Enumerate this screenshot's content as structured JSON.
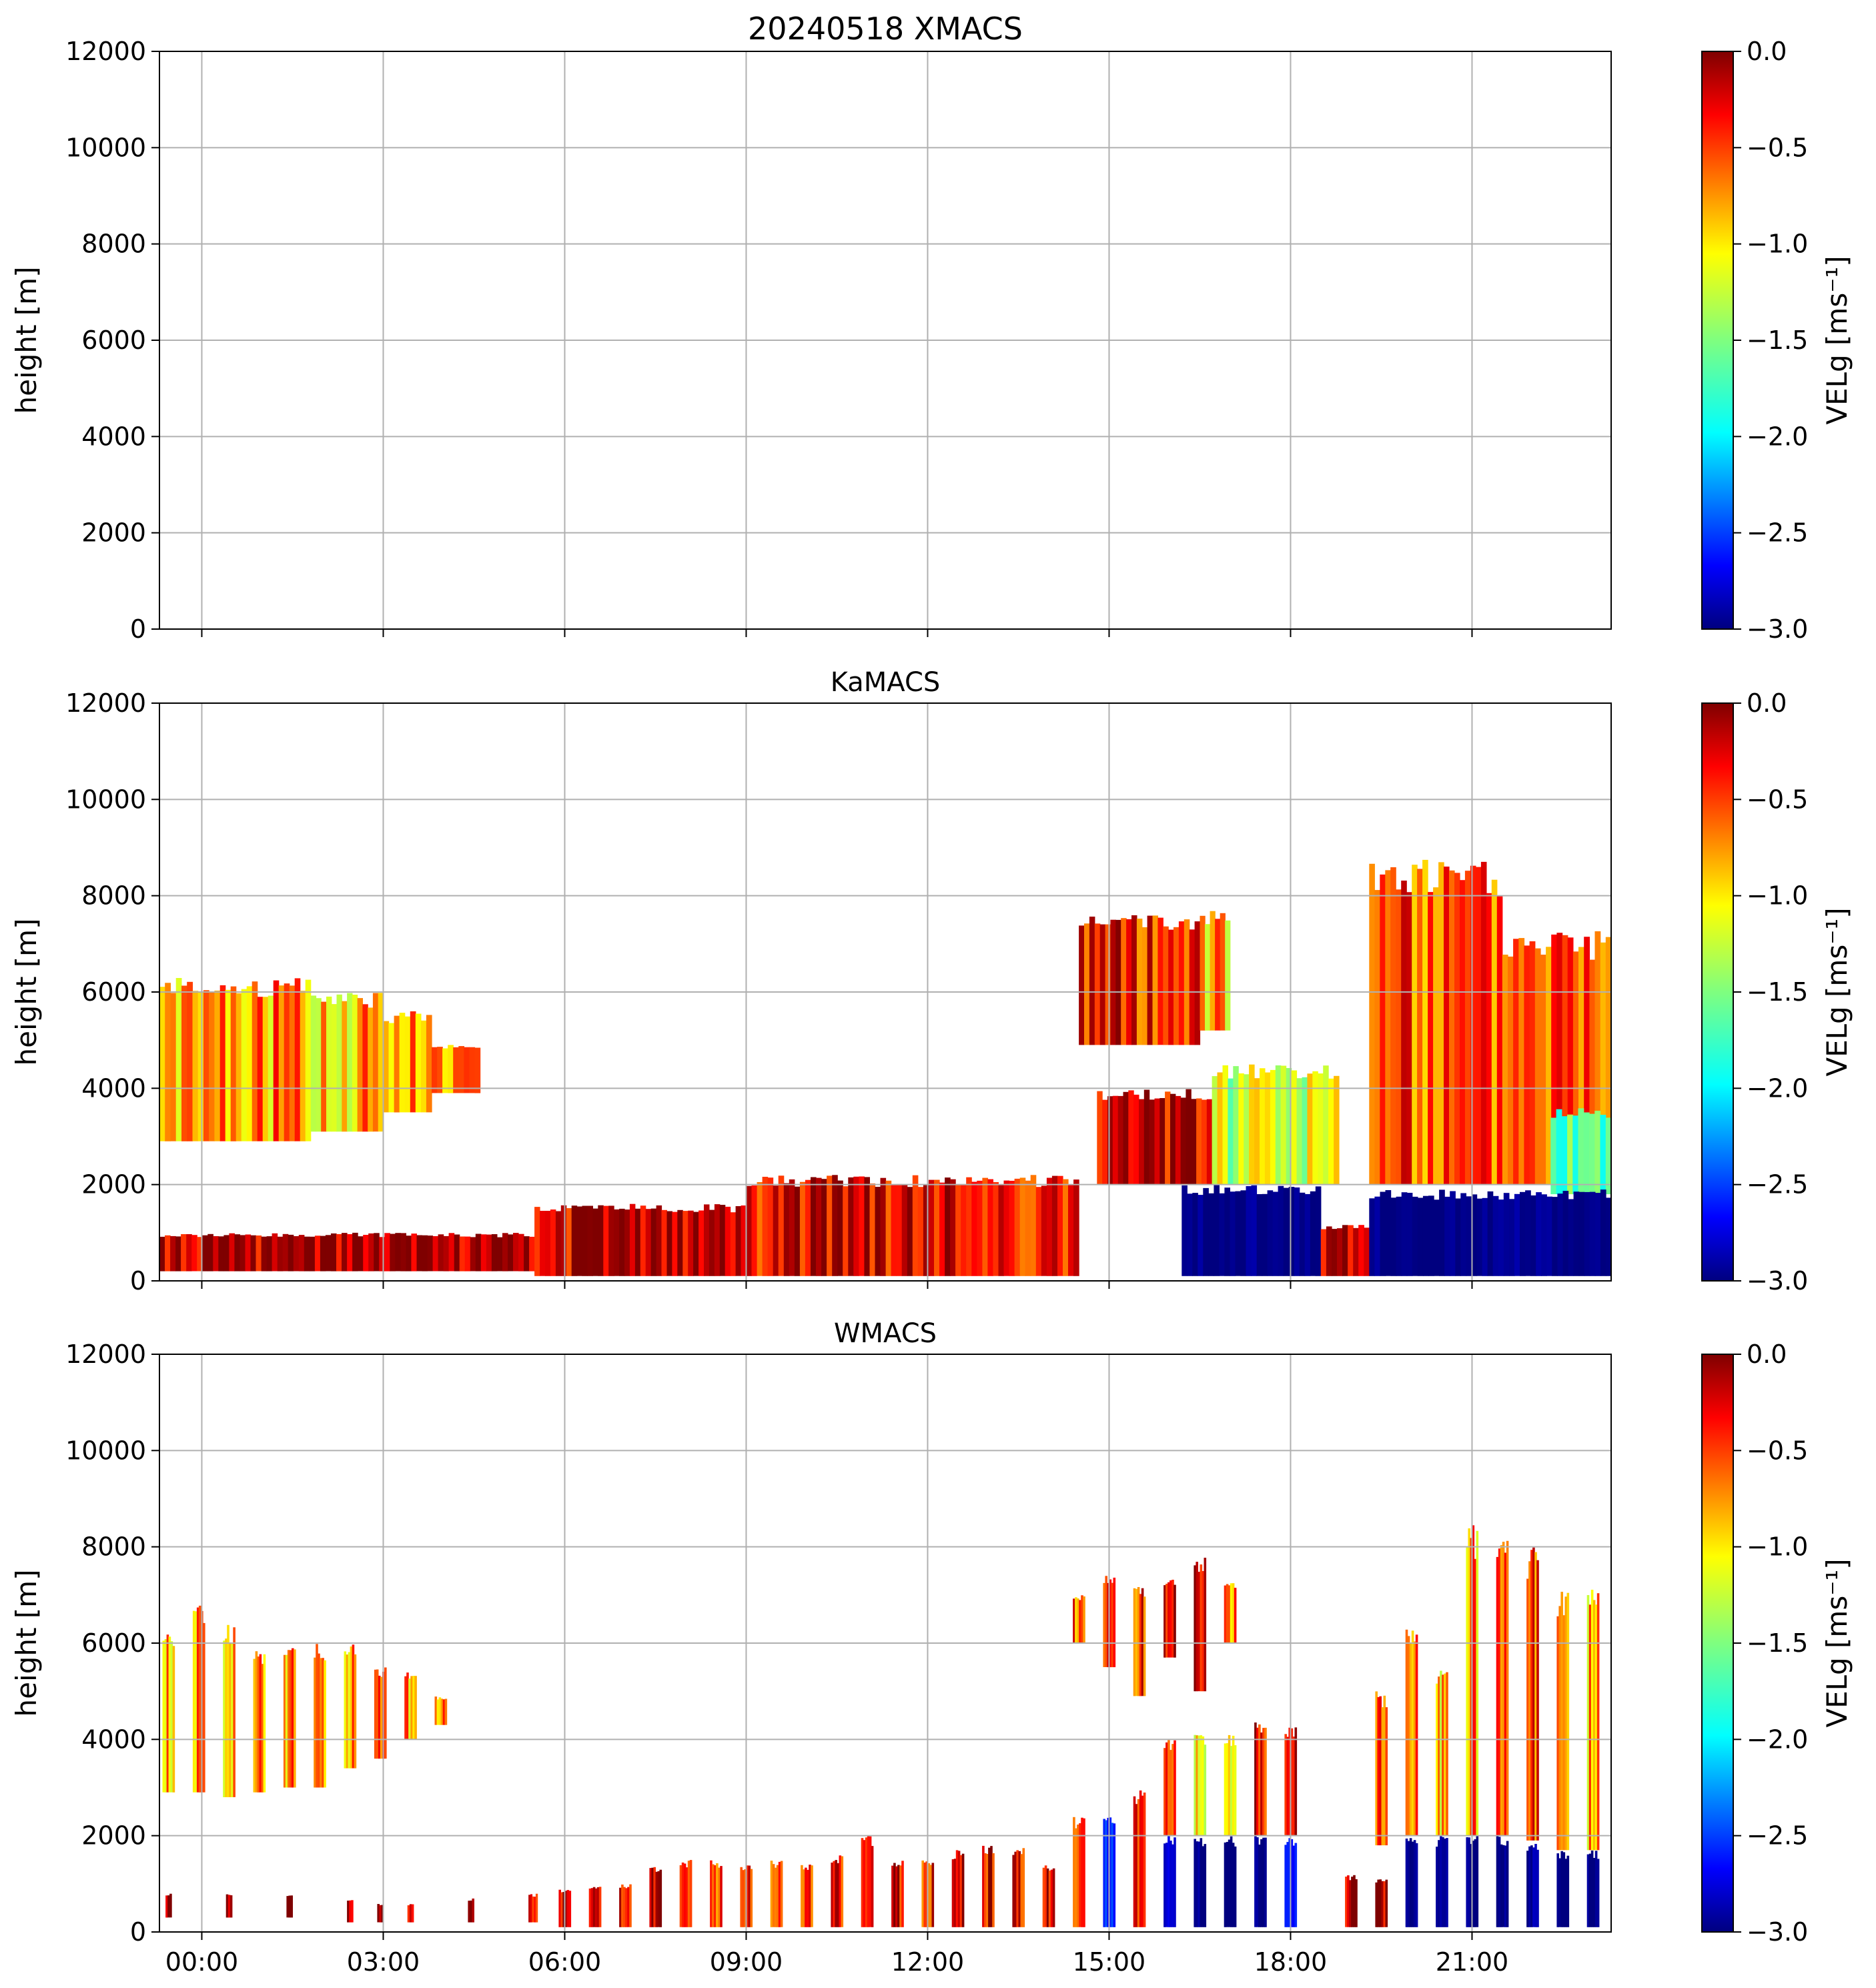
{
  "figure": {
    "title": "20240518 XMACS"
  },
  "colors": {
    "jet": [
      "#00007f",
      "#0000ff",
      "#007fff",
      "#00ffff",
      "#7fff7f",
      "#ffff00",
      "#ff7f00",
      "#ff0000",
      "#7f0000"
    ],
    "grid": "#b0b0b0",
    "axis": "#000000"
  },
  "chart_data": [
    {
      "type": "heatmap",
      "title": "20240518 XMACS",
      "xlabel": "",
      "ylabel": "height [m]",
      "xlim": [
        -0.7,
        23.3
      ],
      "ylim": [
        0,
        12000
      ],
      "x_ticks": [
        0,
        3,
        6,
        9,
        12,
        15,
        18,
        21
      ],
      "x_tick_labels": [],
      "y_ticks": [
        0,
        2000,
        4000,
        6000,
        8000,
        10000,
        12000
      ],
      "y_tick_labels": [
        "0",
        "2000",
        "4000",
        "6000",
        "8000",
        "10000",
        "12000"
      ],
      "grid": true,
      "colorbar": {
        "label": "VELg [ms⁻¹]",
        "vmin": -3.0,
        "vmax": 0.0,
        "ticks": [
          0.0,
          -0.5,
          -1.0,
          -1.5,
          -2.0,
          -2.5,
          -3.0
        ],
        "tick_labels": [
          "0.0",
          "−0.5",
          "−1.0",
          "−1.5",
          "−2.0",
          "−2.5",
          "−3.0"
        ]
      },
      "regions": []
    },
    {
      "type": "heatmap",
      "title": "KaMACS",
      "xlabel": "",
      "ylabel": "height [m]",
      "xlim": [
        -0.7,
        23.3
      ],
      "ylim": [
        0,
        12000
      ],
      "x_ticks": [
        0,
        3,
        6,
        9,
        12,
        15,
        18,
        21
      ],
      "x_tick_labels": [],
      "y_ticks": [
        0,
        2000,
        4000,
        6000,
        8000,
        10000,
        12000
      ],
      "y_tick_labels": [
        "0",
        "2000",
        "4000",
        "6000",
        "8000",
        "10000",
        "12000"
      ],
      "grid": true,
      "colorbar": {
        "label": "VELg [ms⁻¹]",
        "vmin": -3.0,
        "vmax": 0.0,
        "ticks": [
          0.0,
          -0.5,
          -1.0,
          -1.5,
          -2.0,
          -2.5,
          -3.0
        ],
        "tick_labels": [
          "0.0",
          "−0.5",
          "−1.0",
          "−1.5",
          "−2.0",
          "−2.5",
          "−3.0"
        ]
      },
      "regions": [
        {
          "name": "morning-upper-cloud",
          "t0": -0.7,
          "t1": 0.3,
          "h0": 2900,
          "h1": 6300,
          "vel": -0.9
        },
        {
          "name": "morning-upper-cloud",
          "t0": 0.3,
          "t1": 1.8,
          "h0": 2900,
          "h1": 6300,
          "vel": -0.8
        },
        {
          "name": "morning-upper-cloud",
          "t0": 1.8,
          "t1": 3.0,
          "h0": 3100,
          "h1": 6000,
          "vel": -0.9
        },
        {
          "name": "morning-upper-cloud",
          "t0": 3.0,
          "t1": 3.8,
          "h0": 3500,
          "h1": 5600,
          "vel": -0.8
        },
        {
          "name": "morning-upper-cloud",
          "t0": 3.8,
          "t1": 4.6,
          "h0": 3900,
          "h1": 4900,
          "vel": -0.7
        },
        {
          "name": "boundary-layer",
          "t0": -0.7,
          "t1": 5.5,
          "h0": 200,
          "h1": 1000,
          "vel": -0.1
        },
        {
          "name": "boundary-layer",
          "t0": 5.5,
          "t1": 9.0,
          "h0": 100,
          "h1": 1600,
          "vel": -0.2
        },
        {
          "name": "boundary-layer",
          "t0": 9.0,
          "t1": 14.5,
          "h0": 100,
          "h1": 2200,
          "vel": -0.3
        },
        {
          "name": "afternoon-upper-cloud",
          "t0": 14.5,
          "t1": 16.5,
          "h0": 4900,
          "h1": 7600,
          "vel": -0.4
        },
        {
          "name": "afternoon-upper-cloud",
          "t0": 16.5,
          "t1": 17.0,
          "h0": 5200,
          "h1": 7700,
          "vel": -0.9
        },
        {
          "name": "mid-cloud",
          "t0": 14.8,
          "t1": 16.7,
          "h0": 2000,
          "h1": 4000,
          "vel": -0.2
        },
        {
          "name": "mid-cloud",
          "t0": 16.7,
          "t1": 18.8,
          "h0": 2000,
          "h1": 4500,
          "vel": -1.2
        },
        {
          "name": "low-rain",
          "t0": 16.2,
          "t1": 18.5,
          "h0": 100,
          "h1": 2000,
          "vel": -3.0
        },
        {
          "name": "low-drizzle",
          "t0": 18.5,
          "t1": 19.3,
          "h0": 100,
          "h1": 1200,
          "vel": -0.1
        },
        {
          "name": "evening-deep-cloud",
          "t0": 19.3,
          "t1": 21.5,
          "h0": 2000,
          "h1": 8800,
          "vel": -0.6
        },
        {
          "name": "evening-deep-cloud",
          "t0": 21.5,
          "t1": 23.3,
          "h0": 2000,
          "h1": 7300,
          "vel": -0.5
        },
        {
          "name": "evening-deep-cloud",
          "t0": 22.3,
          "t1": 23.3,
          "h0": 1800,
          "h1": 3600,
          "vel": -1.4
        },
        {
          "name": "evening-rain",
          "t0": 19.3,
          "t1": 23.3,
          "h0": 100,
          "h1": 1900,
          "vel": -3.0
        }
      ]
    },
    {
      "type": "heatmap",
      "title": "WMACS",
      "xlabel": "",
      "ylabel": "height [m]",
      "xlim": [
        -0.7,
        23.3
      ],
      "ylim": [
        0,
        12000
      ],
      "x_ticks": [
        0,
        3,
        6,
        9,
        12,
        15,
        18,
        21
      ],
      "x_tick_labels": [
        "00:00",
        "03:00",
        "06:00",
        "09:00",
        "12:00",
        "15:00",
        "18:00",
        "21:00"
      ],
      "y_ticks": [
        0,
        2000,
        4000,
        6000,
        8000,
        10000,
        12000
      ],
      "y_tick_labels": [
        "0",
        "2000",
        "4000",
        "6000",
        "8000",
        "10000",
        "12000"
      ],
      "grid": true,
      "colorbar": {
        "label": "VELg [ms⁻¹]",
        "vmin": -3.0,
        "vmax": 0.0,
        "ticks": [
          0.0,
          -0.5,
          -1.0,
          -1.5,
          -2.0,
          -2.5,
          -3.0
        ],
        "tick_labels": [
          "0.0",
          "−0.5",
          "−1.0",
          "−1.5",
          "−2.0",
          "−2.5",
          "−3.0"
        ]
      },
      "regions": [
        {
          "name": "scan-column",
          "t0": -0.65,
          "t1": -0.45,
          "h0": 2900,
          "h1": 6200,
          "vel": -0.9
        },
        {
          "name": "scan-column",
          "t0": -0.15,
          "t1": 0.05,
          "h0": 2900,
          "h1": 6800,
          "vel": -0.9
        },
        {
          "name": "scan-column",
          "t0": 0.35,
          "t1": 0.55,
          "h0": 2800,
          "h1": 6400,
          "vel": -0.9
        },
        {
          "name": "scan-column",
          "t0": 0.85,
          "t1": 1.05,
          "h0": 2900,
          "h1": 5900,
          "vel": -0.8
        },
        {
          "name": "scan-column",
          "t0": 1.35,
          "t1": 1.55,
          "h0": 3000,
          "h1": 5900,
          "vel": -0.8
        },
        {
          "name": "scan-column",
          "t0": 1.85,
          "t1": 2.05,
          "h0": 3000,
          "h1": 6000,
          "vel": -0.9
        },
        {
          "name": "scan-column",
          "t0": 2.35,
          "t1": 2.55,
          "h0": 3400,
          "h1": 6000,
          "vel": -0.8
        },
        {
          "name": "scan-column",
          "t0": 2.85,
          "t1": 3.05,
          "h0": 3600,
          "h1": 5500,
          "vel": -0.7
        },
        {
          "name": "scan-column",
          "t0": 3.35,
          "t1": 3.55,
          "h0": 4000,
          "h1": 5400,
          "vel": -0.8
        },
        {
          "name": "scan-column",
          "t0": 3.85,
          "t1": 4.05,
          "h0": 4300,
          "h1": 4900,
          "vel": -0.7
        },
        {
          "name": "scan-column",
          "t0": -0.6,
          "t1": -0.5,
          "h0": 300,
          "h1": 800,
          "vel": -0.1
        },
        {
          "name": "scan-column",
          "t0": 0.4,
          "t1": 0.5,
          "h0": 300,
          "h1": 800,
          "vel": -0.1
        },
        {
          "name": "scan-column",
          "t0": 1.4,
          "t1": 1.5,
          "h0": 300,
          "h1": 800,
          "vel": -0.1
        },
        {
          "name": "scan-column",
          "t0": 2.4,
          "t1": 2.5,
          "h0": 200,
          "h1": 700,
          "vel": -0.1
        },
        {
          "name": "scan-column",
          "t0": 2.9,
          "t1": 3.0,
          "h0": 200,
          "h1": 600,
          "vel": -0.1
        },
        {
          "name": "scan-column",
          "t0": 3.4,
          "t1": 3.5,
          "h0": 200,
          "h1": 600,
          "vel": -0.1
        },
        {
          "name": "scan-column",
          "t0": 4.4,
          "t1": 4.5,
          "h0": 200,
          "h1": 700,
          "vel": -0.1
        },
        {
          "name": "scan-column",
          "t0": 5.4,
          "t1": 5.55,
          "h0": 200,
          "h1": 800,
          "vel": -0.2
        },
        {
          "name": "scan-column",
          "t0": 5.9,
          "t1": 6.1,
          "h0": 100,
          "h1": 900,
          "vel": -0.2
        },
        {
          "name": "scan-column",
          "t0": 6.4,
          "t1": 6.6,
          "h0": 100,
          "h1": 1000,
          "vel": -0.2
        },
        {
          "name": "scan-column",
          "t0": 6.9,
          "t1": 7.1,
          "h0": 100,
          "h1": 1000,
          "vel": -0.3
        },
        {
          "name": "scan-column",
          "t0": 7.4,
          "t1": 7.6,
          "h0": 100,
          "h1": 1400,
          "vel": -0.3
        },
        {
          "name": "scan-column",
          "t0": 7.9,
          "t1": 8.1,
          "h0": 100,
          "h1": 1500,
          "vel": -0.4
        },
        {
          "name": "scan-column",
          "t0": 8.4,
          "t1": 8.6,
          "h0": 100,
          "h1": 1500,
          "vel": -0.6
        },
        {
          "name": "scan-column",
          "t0": 8.9,
          "t1": 9.1,
          "h0": 100,
          "h1": 1400,
          "vel": -0.5
        },
        {
          "name": "scan-column",
          "t0": 9.4,
          "t1": 9.6,
          "h0": 100,
          "h1": 1500,
          "vel": -0.4
        },
        {
          "name": "scan-column",
          "t0": 9.9,
          "t1": 10.1,
          "h0": 100,
          "h1": 1400,
          "vel": -0.6
        },
        {
          "name": "scan-column",
          "t0": 10.4,
          "t1": 10.6,
          "h0": 100,
          "h1": 1600,
          "vel": -0.5
        },
        {
          "name": "scan-column",
          "t0": 10.9,
          "t1": 11.1,
          "h0": 100,
          "h1": 2000,
          "vel": -0.4
        },
        {
          "name": "scan-column",
          "t0": 11.4,
          "t1": 11.6,
          "h0": 100,
          "h1": 1500,
          "vel": -0.3
        },
        {
          "name": "scan-column",
          "t0": 11.9,
          "t1": 12.1,
          "h0": 100,
          "h1": 1500,
          "vel": -0.4
        },
        {
          "name": "scan-column",
          "t0": 12.4,
          "t1": 12.6,
          "h0": 100,
          "h1": 1700,
          "vel": -0.2
        },
        {
          "name": "scan-column",
          "t0": 12.9,
          "t1": 13.1,
          "h0": 100,
          "h1": 1800,
          "vel": -0.3
        },
        {
          "name": "scan-column",
          "t0": 13.4,
          "t1": 13.6,
          "h0": 100,
          "h1": 1800,
          "vel": -0.4
        },
        {
          "name": "scan-column",
          "t0": 13.9,
          "t1": 14.1,
          "h0": 100,
          "h1": 1400,
          "vel": -0.3
        },
        {
          "name": "scan-column",
          "t0": 14.4,
          "t1": 14.6,
          "h0": 100,
          "h1": 2400,
          "vel": -0.4
        },
        {
          "name": "scan-column",
          "t0": 14.9,
          "t1": 15.1,
          "h0": 100,
          "h1": 2500,
          "vel": -2.5
        },
        {
          "name": "scan-column",
          "t0": 15.4,
          "t1": 15.6,
          "h0": 100,
          "h1": 3000,
          "vel": -0.3
        },
        {
          "name": "scan-column",
          "t0": 15.9,
          "t1": 16.1,
          "h0": 100,
          "h1": 2000,
          "vel": -2.8
        },
        {
          "name": "scan-column",
          "t0": 15.9,
          "t1": 16.1,
          "h0": 2000,
          "h1": 4000,
          "vel": -0.6
        },
        {
          "name": "scan-column",
          "t0": 16.4,
          "t1": 16.6,
          "h0": 100,
          "h1": 2000,
          "vel": -3.0
        },
        {
          "name": "scan-column",
          "t0": 16.4,
          "t1": 16.6,
          "h0": 2000,
          "h1": 4100,
          "vel": -1.2
        },
        {
          "name": "scan-column",
          "t0": 16.9,
          "t1": 17.1,
          "h0": 100,
          "h1": 2000,
          "vel": -3.0
        },
        {
          "name": "scan-column",
          "t0": 16.9,
          "t1": 17.1,
          "h0": 2000,
          "h1": 4100,
          "vel": -1.0
        },
        {
          "name": "scan-column",
          "t0": 17.4,
          "t1": 17.6,
          "h0": 100,
          "h1": 2000,
          "vel": -3.0
        },
        {
          "name": "scan-column",
          "t0": 17.4,
          "t1": 17.6,
          "h0": 2000,
          "h1": 4400,
          "vel": -0.3
        },
        {
          "name": "scan-column",
          "t0": 17.9,
          "t1": 18.1,
          "h0": 100,
          "h1": 2000,
          "vel": -2.6
        },
        {
          "name": "scan-column",
          "t0": 17.9,
          "t1": 18.1,
          "h0": 2000,
          "h1": 4300,
          "vel": -0.3
        },
        {
          "name": "scan-column",
          "t0": 18.9,
          "t1": 19.1,
          "h0": 100,
          "h1": 1200,
          "vel": -0.1
        },
        {
          "name": "scan-column",
          "t0": 19.4,
          "t1": 19.6,
          "h0": 100,
          "h1": 1100,
          "vel": -0.1
        },
        {
          "name": "scan-column",
          "t0": 19.4,
          "t1": 19.6,
          "h0": 1800,
          "h1": 5000,
          "vel": -0.6
        },
        {
          "name": "scan-column",
          "t0": 19.9,
          "t1": 20.1,
          "h0": 100,
          "h1": 2000,
          "vel": -3.0
        },
        {
          "name": "scan-column",
          "t0": 19.9,
          "t1": 20.1,
          "h0": 2000,
          "h1": 6300,
          "vel": -0.7
        },
        {
          "name": "scan-column",
          "t0": 20.4,
          "t1": 20.6,
          "h0": 100,
          "h1": 2000,
          "vel": -3.0
        },
        {
          "name": "scan-column",
          "t0": 20.4,
          "t1": 20.6,
          "h0": 2000,
          "h1": 5500,
          "vel": -1.0
        },
        {
          "name": "scan-column",
          "t0": 20.9,
          "t1": 21.1,
          "h0": 100,
          "h1": 2000,
          "vel": -3.0
        },
        {
          "name": "scan-column",
          "t0": 20.9,
          "t1": 21.1,
          "h0": 2000,
          "h1": 8500,
          "vel": -0.8
        },
        {
          "name": "scan-column",
          "t0": 21.4,
          "t1": 21.6,
          "h0": 100,
          "h1": 2000,
          "vel": -3.0
        },
        {
          "name": "scan-column",
          "t0": 21.4,
          "t1": 21.6,
          "h0": 2000,
          "h1": 8500,
          "vel": -0.8
        },
        {
          "name": "scan-column",
          "t0": 21.9,
          "t1": 22.1,
          "h0": 100,
          "h1": 1900,
          "vel": -2.9
        },
        {
          "name": "scan-column",
          "t0": 21.9,
          "t1": 22.1,
          "h0": 1900,
          "h1": 8000,
          "vel": -0.5
        },
        {
          "name": "scan-column",
          "t0": 22.4,
          "t1": 22.6,
          "h0": 100,
          "h1": 1700,
          "vel": -3.0
        },
        {
          "name": "scan-column",
          "t0": 22.4,
          "t1": 22.6,
          "h0": 1700,
          "h1": 7200,
          "vel": -0.7
        },
        {
          "name": "scan-column",
          "t0": 22.9,
          "t1": 23.1,
          "h0": 100,
          "h1": 1700,
          "vel": -3.0
        },
        {
          "name": "scan-column",
          "t0": 22.9,
          "t1": 23.1,
          "h0": 1700,
          "h1": 7300,
          "vel": -0.9
        },
        {
          "name": "scan-column",
          "t0": 14.4,
          "t1": 14.6,
          "h0": 6000,
          "h1": 7000,
          "vel": -0.6
        },
        {
          "name": "scan-column",
          "t0": 14.9,
          "t1": 15.1,
          "h0": 5500,
          "h1": 7400,
          "vel": -0.3
        },
        {
          "name": "scan-column",
          "t0": 15.4,
          "t1": 15.6,
          "h0": 4900,
          "h1": 7200,
          "vel": -0.5
        },
        {
          "name": "scan-column",
          "t0": 15.9,
          "t1": 16.1,
          "h0": 5700,
          "h1": 7400,
          "vel": -0.4
        },
        {
          "name": "scan-column",
          "t0": 16.4,
          "t1": 16.6,
          "h0": 5000,
          "h1": 7800,
          "vel": -0.3
        },
        {
          "name": "scan-column",
          "t0": 16.9,
          "t1": 17.1,
          "h0": 6000,
          "h1": 7300,
          "vel": -0.8
        }
      ]
    }
  ]
}
